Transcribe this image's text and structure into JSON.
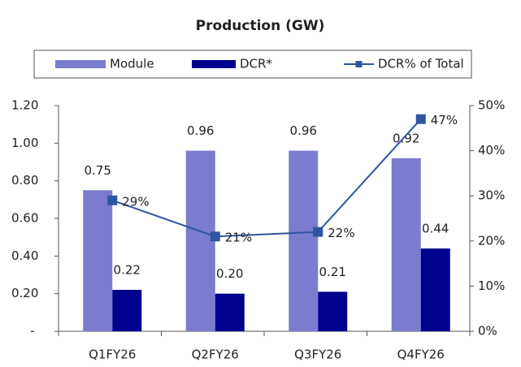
{
  "chart_data": {
    "type": "bar",
    "title": "Production (GW)",
    "categories": [
      "Q1FY26",
      "Q2FY26",
      "Q3FY26",
      "Q4FY26"
    ],
    "series": [
      {
        "name": "Module",
        "color": "#7b7bd0",
        "values": [
          0.75,
          0.96,
          0.96,
          0.92
        ],
        "value_labels": [
          "0.75",
          "0.96",
          "0.96",
          "0.92"
        ]
      },
      {
        "name": "DCR*",
        "color": "#00008f",
        "values": [
          0.22,
          0.2,
          0.21,
          0.44
        ],
        "value_labels": [
          "0.22",
          "0.20",
          "0.21",
          "0.44"
        ]
      },
      {
        "name": "DCR% of Total",
        "type": "line",
        "axis": "y2",
        "color": "#2f55a0",
        "values": [
          29,
          21,
          22,
          47
        ],
        "value_labels": [
          "29%",
          "21%",
          "22%",
          "47%"
        ]
      }
    ],
    "ylim": [
      0,
      1.2
    ],
    "yticks": [
      {
        "value": 0,
        "label": "-"
      },
      {
        "value": 0.2,
        "label": "0.20"
      },
      {
        "value": 0.4,
        "label": "0.40"
      },
      {
        "value": 0.6,
        "label": "0.60"
      },
      {
        "value": 0.8,
        "label": "0.80"
      },
      {
        "value": 1,
        "label": "1.00"
      },
      {
        "value": 1.2,
        "label": "1.20"
      }
    ],
    "y2lim": [
      0,
      50
    ],
    "y2ticks": [
      {
        "value": 0,
        "label": "0%"
      },
      {
        "value": 10,
        "label": "10%"
      },
      {
        "value": 20,
        "label": "20%"
      },
      {
        "value": 30,
        "label": "30%"
      },
      {
        "value": 40,
        "label": "40%"
      },
      {
        "value": 50,
        "label": "50%"
      }
    ],
    "legend": "top"
  }
}
